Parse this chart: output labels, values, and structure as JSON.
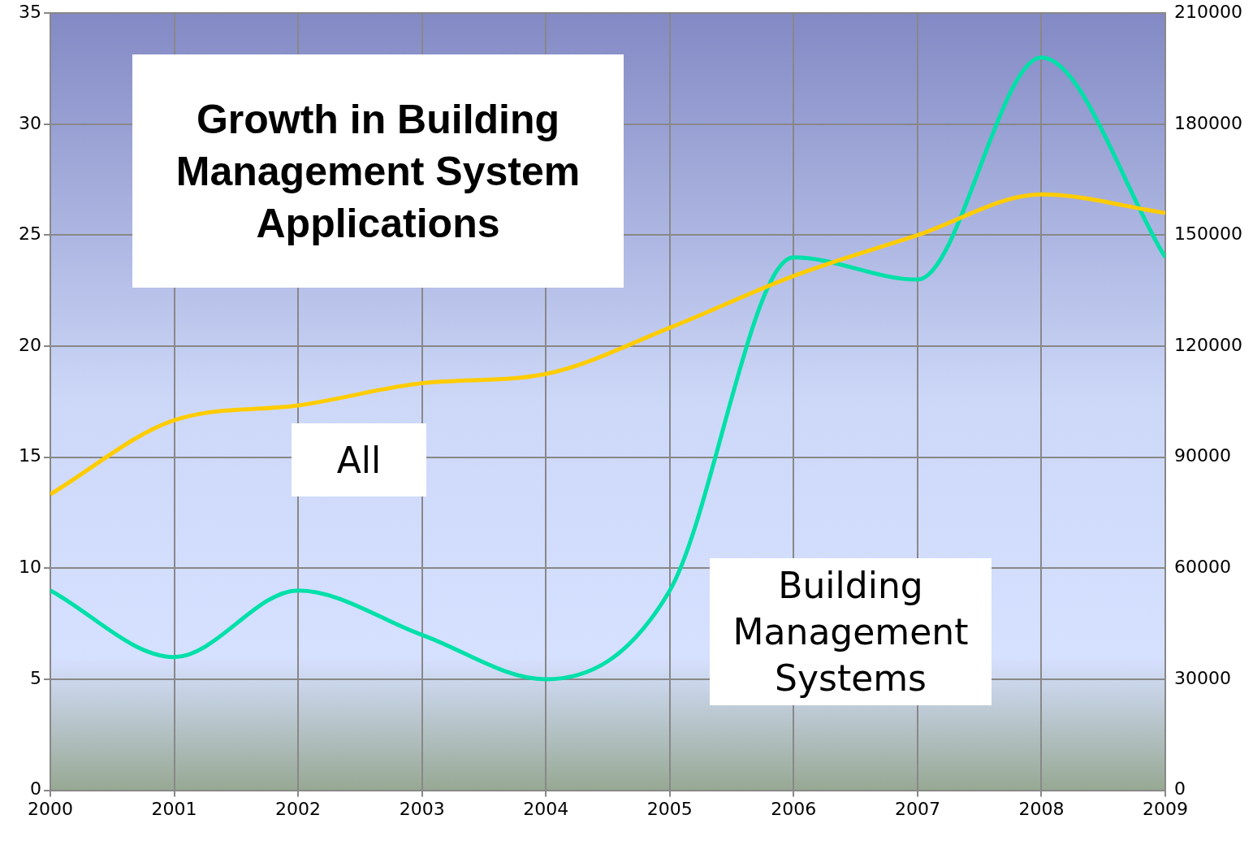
{
  "chart_data": {
    "type": "line",
    "title": "Growth in Building Management System Applications",
    "x": [
      2000,
      2001,
      2002,
      2003,
      2004,
      2005,
      2006,
      2007,
      2008,
      2009
    ],
    "series": [
      {
        "name": "All",
        "color": "#ffcc00",
        "axis": "y2",
        "values": [
          80000,
          100000,
          104000,
          110000,
          112500,
          125000,
          139000,
          150000,
          161000,
          156000
        ]
      },
      {
        "name": "Building Management Systems",
        "color": "#00e0a8",
        "values": [
          9,
          6,
          9,
          7,
          5,
          9,
          24,
          23,
          33,
          24
        ]
      }
    ],
    "xlim": [
      2000,
      2009
    ],
    "xticks": [
      2000,
      2001,
      2002,
      2003,
      2004,
      2005,
      2006,
      2007,
      2008,
      2009
    ],
    "ylim": [
      0,
      35
    ],
    "yticks": [
      0,
      5,
      10,
      15,
      20,
      25,
      30,
      35
    ],
    "y2lim": [
      0,
      210000
    ],
    "y2ticks": [
      0,
      30000,
      60000,
      90000,
      120000,
      150000,
      180000,
      210000
    ],
    "grid": true,
    "legend": false,
    "marker": "none",
    "line_style": "solid"
  }
}
